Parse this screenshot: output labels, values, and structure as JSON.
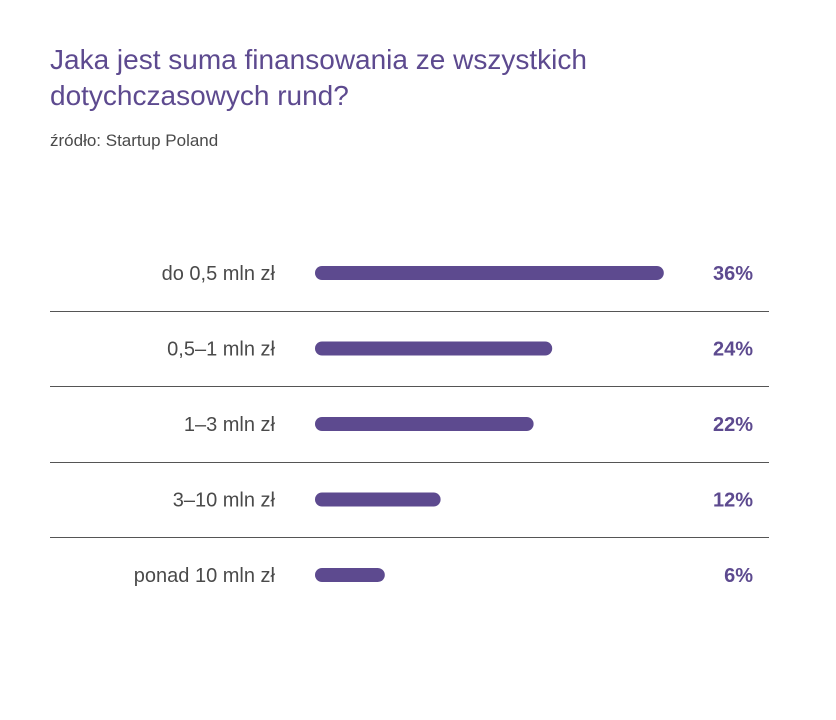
{
  "title": "Jaka jest suma finansowania ze wszystkich dotychczasowych rund?",
  "source": "źródło: Startup Poland",
  "colors": {
    "bar": "#5d4a8f",
    "title": "#5d4a8f",
    "text": "#4a4a4a",
    "divider": "#555555"
  },
  "chart_data": {
    "type": "bar",
    "orientation": "horizontal",
    "title": "Jaka jest suma finansowania ze wszystkich dotychczasowych rund?",
    "categories": [
      "do 0,5 mln zł",
      "0,5–1 mln zł",
      "1–3 mln zł",
      "3–10 mln zł",
      "ponad 10 mln zł"
    ],
    "values": [
      36,
      24,
      22,
      12,
      6
    ],
    "value_labels": [
      "36%",
      "24%",
      "22%",
      "12%",
      "6%"
    ],
    "unit": "%",
    "xlabel": "",
    "ylabel": "",
    "grid": false,
    "legend": "none"
  }
}
